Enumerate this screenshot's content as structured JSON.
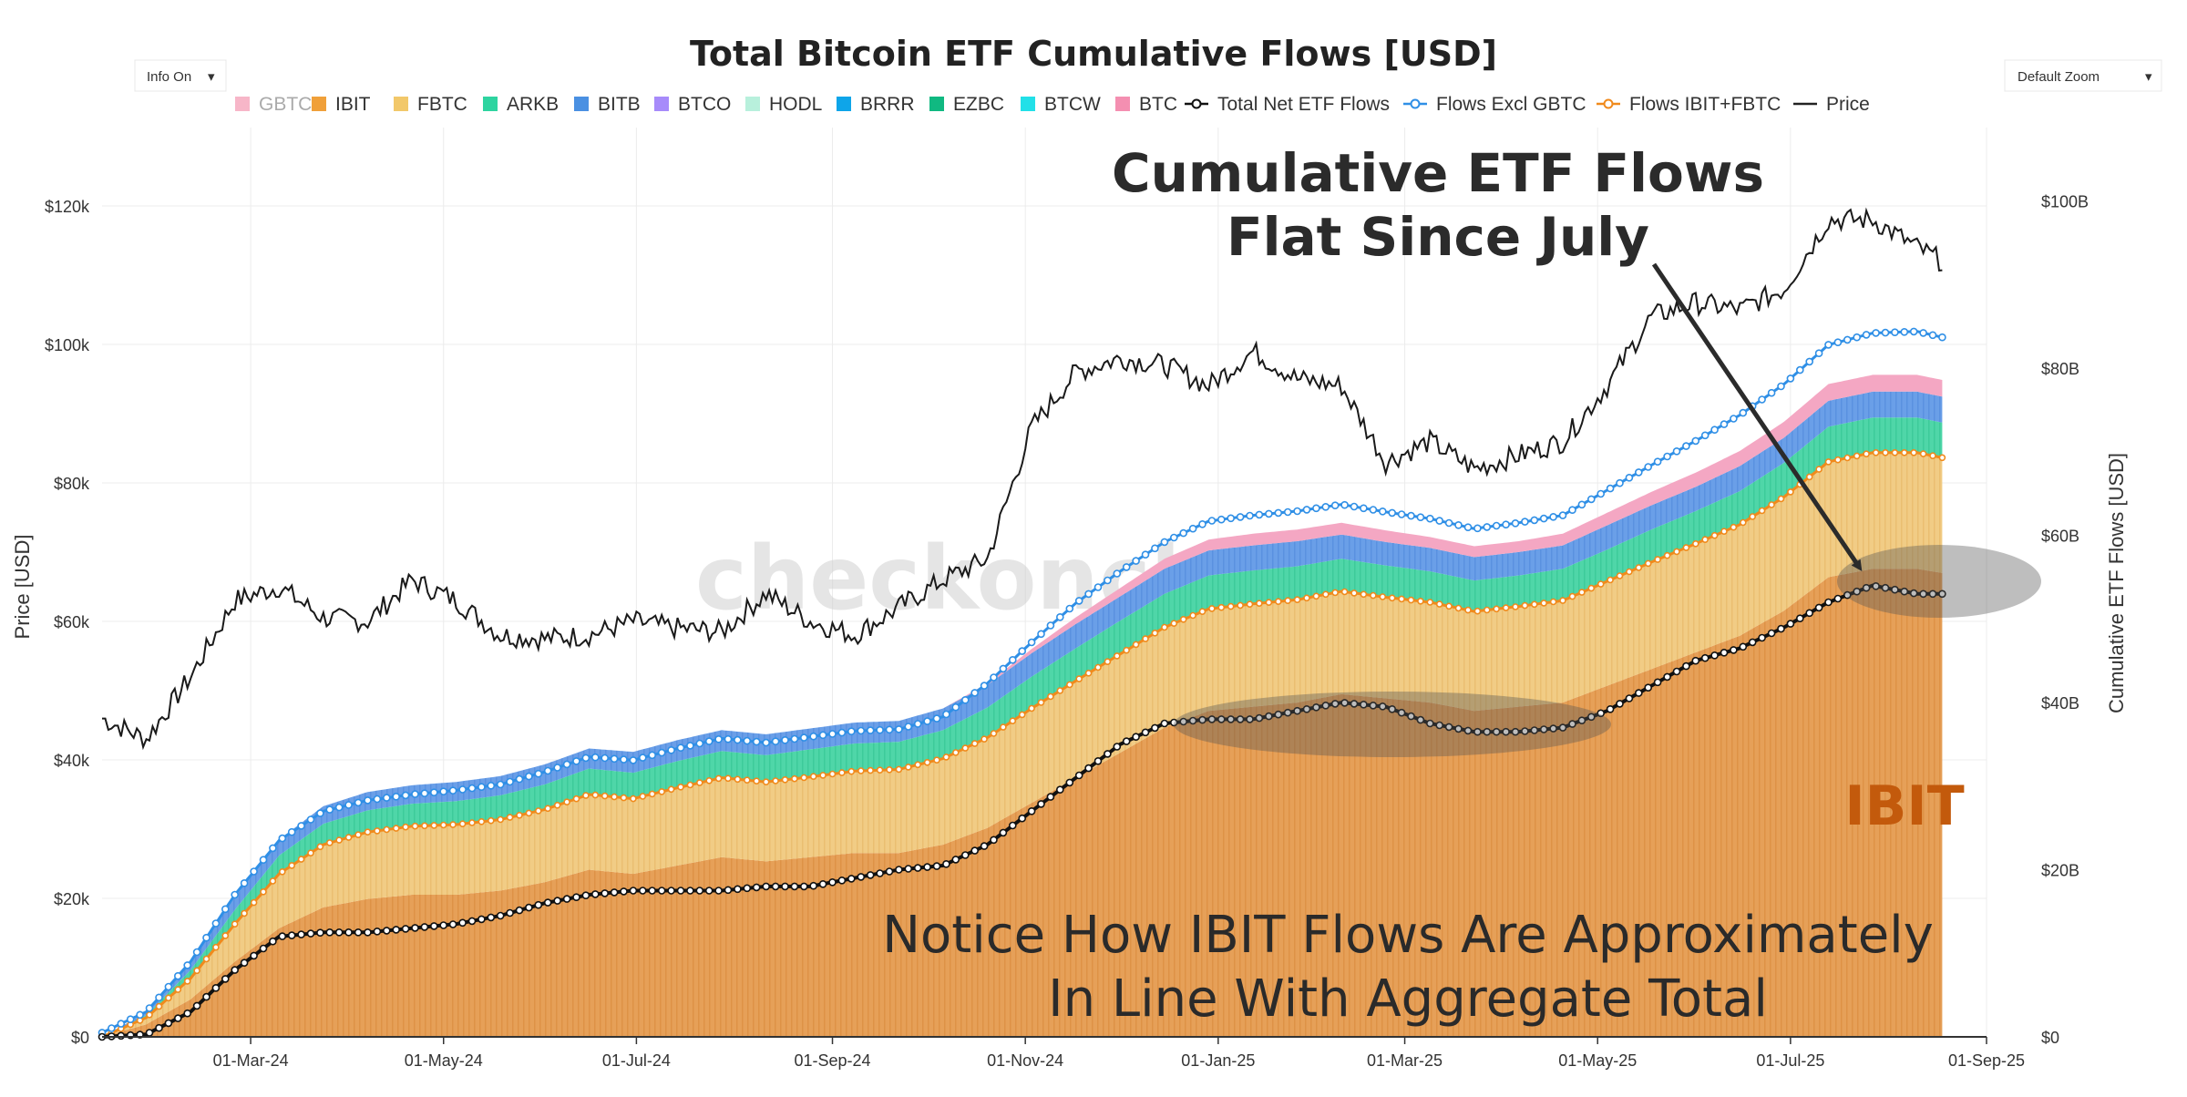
{
  "chart_data": {
    "type": "area",
    "title": "Total Bitcoin ETF Cumulative Flows [USD]",
    "controls": {
      "info_label": "Info On",
      "zoom_label": "Default Zoom"
    },
    "y_left": {
      "label": "Price [USD]",
      "range": [
        0,
        130000
      ],
      "ticks": [
        {
          "v": 0,
          "t": "$0"
        },
        {
          "v": 20000,
          "t": "$20k"
        },
        {
          "v": 40000,
          "t": "$40k"
        },
        {
          "v": 60000,
          "t": "$60k"
        },
        {
          "v": 80000,
          "t": "$80k"
        },
        {
          "v": 100000,
          "t": "$100k"
        },
        {
          "v": 120000,
          "t": "$120k"
        }
      ]
    },
    "y_right": {
      "label": "Cumulative ETF Flows [USD]",
      "range": [
        0,
        107.7
      ],
      "ticks": [
        {
          "v": 0,
          "t": "$0"
        },
        {
          "v": 20,
          "t": "$20B"
        },
        {
          "v": 40,
          "t": "$40B"
        },
        {
          "v": 60,
          "t": "$60B"
        },
        {
          "v": 80,
          "t": "$80B"
        },
        {
          "v": 100,
          "t": "$100B"
        }
      ]
    },
    "x_range": [
      0,
      596
    ],
    "x_ticks": [
      {
        "d": 47,
        "t": "01-Mar-24"
      },
      {
        "d": 108,
        "t": "01-May-24"
      },
      {
        "d": 169,
        "t": "01-Jul-24"
      },
      {
        "d": 231,
        "t": "01-Sep-24"
      },
      {
        "d": 292,
        "t": "01-Nov-24"
      },
      {
        "d": 353,
        "t": "01-Jan-25"
      },
      {
        "d": 412,
        "t": "01-Mar-25"
      },
      {
        "d": 473,
        "t": "01-May-25"
      },
      {
        "d": 534,
        "t": "01-Jul-25"
      },
      {
        "d": 596,
        "t": "01-Sep-25"
      }
    ],
    "legend": [
      {
        "name": "GBTC",
        "color": "#f7b6c8",
        "kind": "box",
        "disabled": true
      },
      {
        "name": "IBIT",
        "color": "#f0a03a",
        "kind": "box"
      },
      {
        "name": "FBTC",
        "color": "#f2c86a",
        "kind": "box"
      },
      {
        "name": "ARKB",
        "color": "#2ed4a0",
        "kind": "box"
      },
      {
        "name": "BITB",
        "color": "#4a90e2",
        "kind": "box"
      },
      {
        "name": "BTCO",
        "color": "#a78bfa",
        "kind": "box"
      },
      {
        "name": "HODL",
        "color": "#b8f0dc",
        "kind": "box"
      },
      {
        "name": "BRRR",
        "color": "#0ea5e9",
        "kind": "box"
      },
      {
        "name": "EZBC",
        "color": "#10b981",
        "kind": "box"
      },
      {
        "name": "BTCW",
        "color": "#22e0e8",
        "kind": "box"
      },
      {
        "name": "BTC",
        "color": "#f48fb1",
        "kind": "box"
      },
      {
        "name": "Total Net ETF Flows",
        "color": "#111111",
        "kind": "line-dot"
      },
      {
        "name": "Flows Excl GBTC",
        "color": "#2f8fe6",
        "kind": "line-dot"
      },
      {
        "name": "Flows IBIT+FBTC",
        "color": "#f08a1c",
        "kind": "line-dot"
      },
      {
        "name": "Price",
        "color": "#222222",
        "kind": "line"
      }
    ],
    "series_keys_days": [
      0,
      14,
      28,
      42,
      56,
      70,
      84,
      98,
      112,
      126,
      140,
      154,
      168,
      182,
      196,
      210,
      224,
      238,
      252,
      266,
      280,
      294,
      308,
      322,
      336,
      350,
      364,
      378,
      392,
      406,
      420,
      434,
      448,
      462,
      476,
      490,
      504,
      518,
      532,
      546,
      560,
      574,
      582
    ],
    "series": [
      {
        "name": "IBIT",
        "values": [
          0,
          1.5,
          4.5,
          9,
          13,
          15.5,
          16.5,
          17,
          17,
          17.5,
          18.5,
          20,
          19.5,
          20.5,
          21.5,
          21,
          21.5,
          22,
          22,
          23,
          25,
          28,
          31,
          34,
          37,
          39,
          39.5,
          40,
          41,
          40.5,
          40,
          39,
          39.5,
          40,
          42,
          44,
          46,
          48,
          51,
          55,
          56,
          56,
          55.5
        ]
      },
      {
        "name": "FBTC",
        "values": [
          0,
          0.8,
          2.5,
          4.5,
          6.5,
          7.5,
          8,
          8.2,
          8.4,
          8.5,
          8.7,
          9,
          9,
          9.3,
          9.5,
          9.5,
          9.6,
          9.8,
          10,
          10.3,
          10.8,
          11.3,
          11.6,
          11.8,
          12,
          12.2,
          12.3,
          12.3,
          12.3,
          12.1,
          12,
          11.9,
          12,
          12.2,
          12.5,
          12.8,
          13,
          13.3,
          13.6,
          13.8,
          13.9,
          13.9,
          13.8
        ]
      },
      {
        "name": "ARKB",
        "values": [
          0,
          0.3,
          1,
          1.7,
          2.2,
          2.5,
          2.6,
          2.7,
          2.8,
          2.9,
          3,
          3.1,
          3.1,
          3.2,
          3.2,
          3.2,
          3.3,
          3.3,
          3.3,
          3.4,
          3.6,
          3.8,
          3.9,
          4,
          4,
          4,
          4,
          4,
          3.9,
          3.8,
          3.7,
          3.7,
          3.7,
          3.8,
          3.8,
          3.9,
          3.9,
          4,
          4.1,
          4.2,
          4.2,
          4.2,
          4.2
        ]
      },
      {
        "name": "BITB",
        "values": [
          0,
          0.3,
          0.9,
          1.5,
          1.9,
          2.1,
          2.2,
          2.2,
          2.3,
          2.3,
          2.4,
          2.4,
          2.5,
          2.5,
          2.5,
          2.5,
          2.5,
          2.5,
          2.5,
          2.6,
          2.7,
          2.8,
          2.9,
          2.9,
          3,
          3,
          3,
          3,
          2.9,
          2.8,
          2.8,
          2.8,
          2.8,
          2.8,
          2.9,
          2.9,
          2.9,
          3,
          3,
          3.1,
          3.1,
          3.1,
          3.1
        ]
      },
      {
        "name": "BTC",
        "values": [
          0,
          0,
          0,
          0,
          0,
          0,
          0,
          0,
          0,
          0,
          0,
          0,
          0,
          0,
          0,
          0,
          0,
          0,
          0,
          0,
          0.2,
          0.5,
          0.8,
          1,
          1.2,
          1.3,
          1.4,
          1.4,
          1.4,
          1.4,
          1.3,
          1.3,
          1.3,
          1.4,
          1.5,
          1.6,
          1.7,
          1.8,
          1.9,
          2,
          2,
          2,
          2
        ]
      },
      {
        "name": "Total Net ETF Flows",
        "values": [
          0,
          0.3,
          3,
          8,
          12,
          12.5,
          12.5,
          13,
          13.5,
          14.5,
          16,
          17,
          17.5,
          17.5,
          17.5,
          18,
          18,
          19,
          20,
          20.5,
          23,
          27,
          31,
          35,
          37.5,
          38,
          38,
          39,
          40,
          39.5,
          37.5,
          36.5,
          36.5,
          37,
          39,
          42,
          45,
          46.5,
          49,
          52,
          54,
          53,
          53
        ]
      },
      {
        "name": "Flows Excl GBTC",
        "values": [
          0.5,
          3,
          9,
          17,
          23.5,
          27,
          28.3,
          29,
          29.5,
          30.2,
          31.7,
          33.5,
          33.1,
          34.5,
          35.7,
          35.2,
          35.9,
          36.6,
          36.8,
          38.3,
          42.3,
          47.2,
          51.9,
          55.7,
          59.2,
          61.7,
          62.4,
          62.9,
          63.7,
          62.8,
          62,
          60.8,
          61.5,
          62.4,
          65.4,
          68.4,
          71.3,
          74.4,
          78.1,
          82.8,
          84.2,
          84.4,
          83.7
        ]
      },
      {
        "name": "Flows IBIT+FBTC",
        "values": [
          0,
          2.3,
          7,
          13.5,
          19.5,
          23,
          24.5,
          25.2,
          25.4,
          26,
          27.2,
          29,
          28.5,
          29.8,
          31,
          30.5,
          31.1,
          31.8,
          32,
          33.3,
          35.8,
          39.3,
          42.6,
          45.8,
          49,
          51.2,
          51.8,
          52.3,
          53.3,
          52.6,
          52,
          50.9,
          51.5,
          52.2,
          54.5,
          56.8,
          59,
          61.3,
          64.6,
          68.8,
          69.9,
          69.9,
          69.3
        ]
      },
      {
        "name": "Price",
        "values": [
          46000,
          43000,
          52000,
          63000,
          65000,
          60500,
          60000,
          66000,
          63000,
          58000,
          57500,
          58000,
          60000,
          59000,
          58500,
          64000,
          60000,
          58000,
          62000,
          66000,
          69000,
          88000,
          96000,
          98000,
          97000,
          94000,
          99000,
          95000,
          94000,
          83000,
          86000,
          82000,
          84000,
          86000,
          94000,
          104000,
          106000,
          105000,
          108000,
          118000,
          118000,
          114000,
          112000
        ]
      }
    ]
  },
  "annotations": {
    "headline_line1": "Cumulative ETF Flows",
    "headline_line2": "Flat Since July",
    "note_line1": "Notice How IBIT Flows Are Approximately",
    "note_line2": "In Line With Aggregate Total",
    "ibit_label": "IBIT",
    "watermark": "checkonchain"
  }
}
